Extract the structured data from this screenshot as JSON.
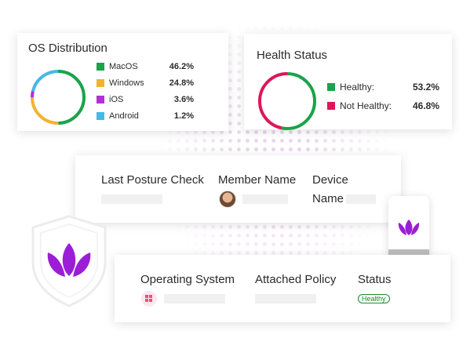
{
  "os_card": {
    "title": "OS Distribution",
    "items": [
      {
        "label": "MacOS",
        "value": "46.2%",
        "color": "#1aa34a"
      },
      {
        "label": "Windows",
        "value": "24.8%",
        "color": "#f2b233"
      },
      {
        "label": "iOS",
        "value": "3.6%",
        "color": "#b430d6"
      },
      {
        "label": "Android",
        "value": "1.2%",
        "color": "#45b9e8"
      }
    ]
  },
  "health_card": {
    "title": "Health Status",
    "items": [
      {
        "label": "Healthy:",
        "value": "53.2%",
        "color": "#1aa34a"
      },
      {
        "label": "Not Healthy:",
        "value": "46.8%",
        "color": "#e0155a"
      }
    ]
  },
  "member_table": {
    "columns": [
      "Last Posture Check",
      "Member Name",
      "Device",
      "Name"
    ]
  },
  "policy_table": {
    "columns": [
      "Operating System",
      "Attached Policy",
      "Status"
    ],
    "status_badge": "Healthy"
  },
  "icons": {
    "shield": "lotus-shield-icon",
    "phone": "lotus-phone-icon",
    "os": "windows-icon",
    "avatar": "avatar"
  }
}
